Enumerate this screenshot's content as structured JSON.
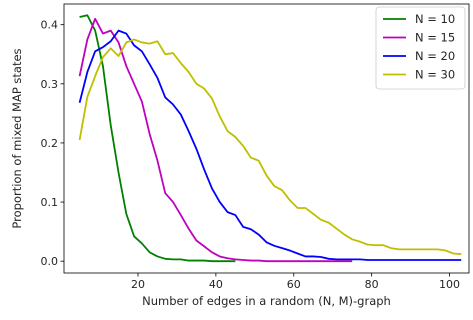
{
  "chart_data": {
    "type": "line",
    "title": "",
    "xlabel": "Number of edges in a random (N, M)-graph",
    "ylabel": "Proportion of mixed MAP states",
    "xlim": [
      1,
      105
    ],
    "ylim": [
      -0.02,
      0.435
    ],
    "xticks": [
      20,
      40,
      60,
      80,
      100
    ],
    "xtick_labels": [
      "20",
      "40",
      "60",
      "80",
      "100"
    ],
    "yticks": [
      0.0,
      0.1,
      0.2,
      0.3,
      0.4
    ],
    "ytick_labels": [
      "0.0",
      "0.1",
      "0.2",
      "0.3",
      "0.4"
    ],
    "grid": false,
    "legend_position": "top-right",
    "series": [
      {
        "name": "N = 10",
        "color": "#008000",
        "x": [
          5,
          7,
          9,
          11,
          13,
          15,
          17,
          19,
          21,
          23,
          25,
          27,
          29,
          31,
          33,
          35,
          37,
          39,
          41,
          43,
          45
        ],
        "y": [
          0.413,
          0.416,
          0.39,
          0.33,
          0.23,
          0.15,
          0.08,
          0.042,
          0.03,
          0.015,
          0.008,
          0.004,
          0.003,
          0.003,
          0.001,
          0.001,
          0.001,
          0.0,
          0.0,
          0.0,
          0.0
        ]
      },
      {
        "name": "N = 15",
        "color": "#bf00bf",
        "x": [
          5,
          7,
          9,
          11,
          13,
          15,
          17,
          19,
          21,
          23,
          25,
          27,
          29,
          31,
          33,
          35,
          37,
          39,
          41,
          43,
          45,
          47,
          49,
          51,
          53,
          55,
          57,
          59,
          61,
          63,
          65,
          67,
          69,
          71,
          73,
          75
        ],
        "y": [
          0.313,
          0.375,
          0.41,
          0.385,
          0.39,
          0.37,
          0.33,
          0.3,
          0.27,
          0.215,
          0.17,
          0.115,
          0.1,
          0.078,
          0.055,
          0.035,
          0.025,
          0.015,
          0.008,
          0.005,
          0.003,
          0.002,
          0.001,
          0.001,
          0.0,
          0.0,
          0.0,
          0.0,
          0.0,
          0.0,
          0.0,
          0.0,
          0.0,
          0.0,
          0.0,
          0.0
        ]
      },
      {
        "name": "N = 20",
        "color": "#0000ff",
        "x": [
          5,
          7,
          9,
          11,
          13,
          15,
          17,
          19,
          21,
          23,
          25,
          27,
          29,
          31,
          33,
          35,
          37,
          39,
          41,
          43,
          45,
          47,
          49,
          51,
          53,
          55,
          57,
          59,
          61,
          63,
          65,
          67,
          69,
          71,
          73,
          75,
          77,
          79,
          81,
          83,
          85,
          87,
          89,
          91,
          93,
          95,
          97,
          99,
          101,
          103
        ],
        "y": [
          0.268,
          0.32,
          0.355,
          0.362,
          0.372,
          0.39,
          0.385,
          0.365,
          0.355,
          0.333,
          0.31,
          0.277,
          0.265,
          0.248,
          0.22,
          0.19,
          0.155,
          0.123,
          0.1,
          0.083,
          0.078,
          0.058,
          0.054,
          0.045,
          0.032,
          0.026,
          0.022,
          0.018,
          0.013,
          0.008,
          0.008,
          0.007,
          0.004,
          0.003,
          0.003,
          0.003,
          0.003,
          0.002,
          0.002,
          0.002,
          0.002,
          0.002,
          0.002,
          0.002,
          0.002,
          0.002,
          0.002,
          0.002,
          0.002,
          0.002
        ]
      },
      {
        "name": "N = 30",
        "color": "#bfbf00",
        "x": [
          5,
          7,
          9,
          11,
          13,
          15,
          17,
          19,
          21,
          23,
          25,
          27,
          29,
          31,
          33,
          35,
          37,
          39,
          41,
          43,
          45,
          47,
          49,
          51,
          53,
          55,
          57,
          59,
          61,
          63,
          65,
          67,
          69,
          71,
          73,
          75,
          77,
          79,
          81,
          83,
          85,
          87,
          89,
          91,
          93,
          95,
          97,
          99,
          101,
          103
        ],
        "y": [
          0.205,
          0.278,
          0.313,
          0.345,
          0.36,
          0.347,
          0.37,
          0.375,
          0.37,
          0.368,
          0.372,
          0.35,
          0.352,
          0.335,
          0.32,
          0.3,
          0.292,
          0.275,
          0.245,
          0.22,
          0.21,
          0.195,
          0.175,
          0.17,
          0.145,
          0.127,
          0.12,
          0.103,
          0.09,
          0.09,
          0.08,
          0.07,
          0.065,
          0.055,
          0.045,
          0.037,
          0.033,
          0.028,
          0.027,
          0.027,
          0.022,
          0.02,
          0.02,
          0.02,
          0.02,
          0.02,
          0.02,
          0.018,
          0.013,
          0.012
        ]
      }
    ]
  }
}
